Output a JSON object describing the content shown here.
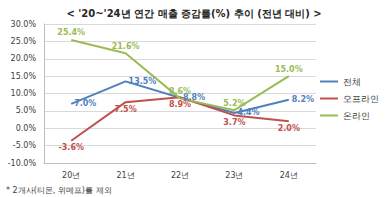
{
  "chart_data": {
    "type": "line",
    "title": "< '20~'24년 연간 매출 증감률(%) 추이 (전년 대비) >",
    "annotations": [
      "* 2개사(티몬, 위메프)를 제외"
    ],
    "categories": [
      "20년",
      "21년",
      "22년",
      "23년",
      "24년"
    ],
    "series": [
      {
        "name": "전체",
        "color": "#4f81bd",
        "values": [
          7.0,
          13.5,
          8.8,
          4.4,
          8.2
        ],
        "value_labels": [
          "7.0%",
          "13.5%",
          "8.8%",
          "4.4%",
          "8.2%"
        ]
      },
      {
        "name": "오프라인",
        "color": "#c0504d",
        "values": [
          -3.6,
          7.5,
          8.9,
          3.7,
          2.0
        ],
        "value_labels": [
          "-3.6%",
          "7.5%",
          "8.9%",
          "3.7%",
          "2.0%"
        ]
      },
      {
        "name": "온라인",
        "color": "#9bbb59",
        "values": [
          25.4,
          21.6,
          8.6,
          5.2,
          15.0
        ],
        "value_labels": [
          "25.4%",
          "21.6%",
          "8.6%",
          "5.2%",
          "15.0%"
        ]
      }
    ],
    "ylim": [
      -10,
      30
    ],
    "yticks": [
      {
        "value": -10,
        "label": "-10.0%"
      },
      {
        "value": -5,
        "label": "-5.0%"
      },
      {
        "value": 0,
        "label": "0.0%"
      },
      {
        "value": 5,
        "label": "5.0%"
      },
      {
        "value": 10,
        "label": "10.0%"
      },
      {
        "value": 15,
        "label": "15.0%"
      },
      {
        "value": 20,
        "label": "20.0%"
      },
      {
        "value": 25,
        "label": "25.0%"
      },
      {
        "value": 30,
        "label": "30.0%"
      }
    ],
    "grid": true,
    "legend": "right",
    "data_labels": true
  }
}
